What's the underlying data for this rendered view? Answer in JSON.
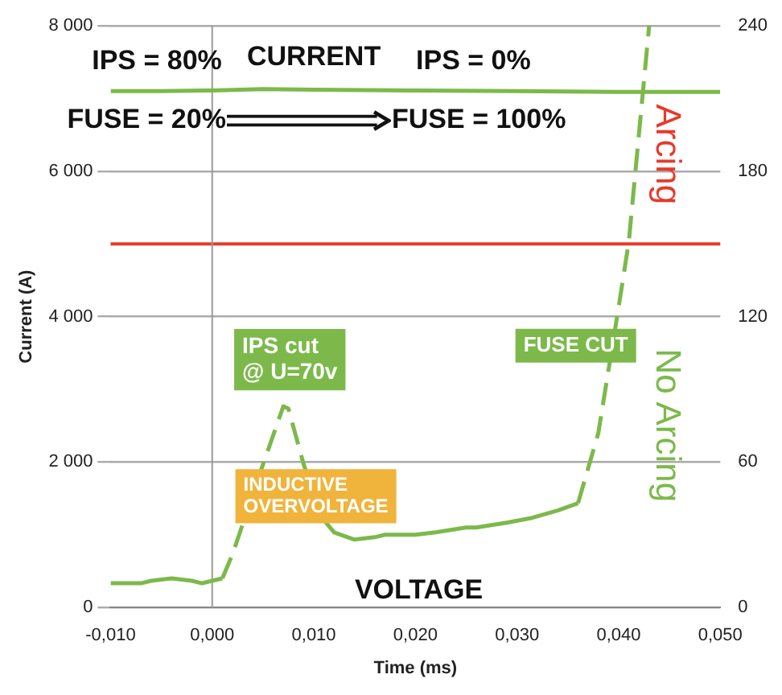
{
  "chart_data": {
    "type": "line",
    "xlabel": "Time (ms)",
    "ylabel": "Current (A)",
    "xlim": [
      -0.01,
      0.05
    ],
    "xticks": [
      {
        "value": -0.01,
        "label": "-0,010"
      },
      {
        "value": 0,
        "label": "0,000"
      },
      {
        "value": 0.01,
        "label": "0,010"
      },
      {
        "value": 0.02,
        "label": "0,020"
      },
      {
        "value": 0.03,
        "label": "0,030"
      },
      {
        "value": 0.04,
        "label": "0,040"
      },
      {
        "value": 0.05,
        "label": "0,050"
      }
    ],
    "ylim": [
      0,
      8000
    ],
    "yticks": [
      0,
      {
        "value": 2000,
        "label": "2 000"
      },
      {
        "value": 4000,
        "label": "4 000"
      },
      {
        "value": 6000,
        "label": "6 000"
      },
      {
        "value": 8000,
        "label": "8 000"
      }
    ],
    "y2lim": [
      0,
      240
    ],
    "y2ticks": [
      0,
      60,
      120,
      180,
      240
    ],
    "grid": "y",
    "legend": false,
    "marker": "none",
    "series": [
      {
        "name": "CURRENT",
        "color": "#7cb94a",
        "x": [
          -0.01,
          -0.005,
          0,
          0.005,
          0.01,
          0.02,
          0.03,
          0.04,
          0.05
        ],
        "values": [
          7100,
          7100,
          7110,
          7130,
          7120,
          7110,
          7100,
          7090,
          7090
        ]
      },
      {
        "name": "VOLTAGE",
        "color": "#7cb94a",
        "axis": "y2",
        "x": [
          -0.01,
          -0.007,
          -0.006,
          -0.004,
          -0.002,
          -0.001,
          0,
          0.001,
          0.005,
          0.011,
          0.012,
          0.014,
          0.016,
          0.017,
          0.02,
          0.022,
          0.025,
          0.026,
          0.029,
          0.0315,
          0.034,
          0.036
        ],
        "values": [
          10,
          10,
          11,
          12,
          11,
          10,
          11,
          12,
          null,
          36,
          31,
          28,
          29,
          30,
          30,
          31,
          33,
          33,
          35,
          37,
          40,
          43
        ]
      },
      {
        "color": "#7cb94a",
        "axis": "y2",
        "line_style": "dashed",
        "x": [
          0.001,
          0.002,
          0.005,
          0.007,
          0.0075,
          0.009,
          0.011,
          0.02,
          0.036,
          0.038,
          0.04,
          0.041,
          0.043
        ],
        "values": [
          12,
          22,
          59,
          83,
          82,
          59,
          36,
          null,
          43,
          72,
          124,
          151,
          240
        ]
      }
    ],
    "ref_lines": [
      {
        "axis": "y",
        "value": 5000,
        "color": "#e8392b"
      },
      {
        "axis": "x",
        "value": 0,
        "color": "#9a9a9a"
      }
    ],
    "annotations": [
      "IPS = 80%",
      "FUSE = 20%",
      "IPS = 0%",
      "FUSE = 100%",
      "IPS cut\n@ U=70v",
      {
        "text": "INDUCTIVE\nOVERVOLTAGE",
        "x": 0.0102,
        "y": 1530
      },
      "FUSE CUT",
      "Arcing",
      "No Arcing"
    ]
  }
}
